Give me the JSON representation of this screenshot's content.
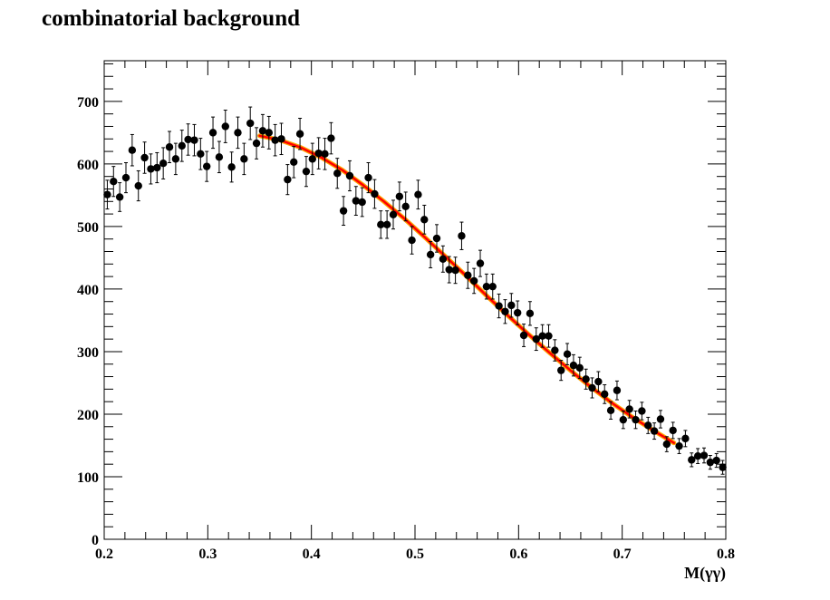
{
  "chart_data": {
    "type": "scatter",
    "title": "combinatorial background",
    "xlabel": "M(γγ)",
    "ylabel": "",
    "xlim": [
      0.2,
      0.8
    ],
    "ylim": [
      0,
      765
    ],
    "grid": false,
    "legend": "none",
    "x_ticks": [
      "0.2",
      "0.3",
      "0.4",
      "0.5",
      "0.6",
      "0.7",
      "0.8"
    ],
    "y_ticks": [
      "0",
      "100",
      "200",
      "300",
      "400",
      "500",
      "600",
      "700"
    ],
    "colors": {
      "points": "#000000",
      "fit_outer": "#ffa500",
      "fit_inner": "#ff0000"
    },
    "series": [
      {
        "kind": "points-with-errors",
        "x": [
          0.203,
          0.209,
          0.215,
          0.221,
          0.227,
          0.233,
          0.239,
          0.245,
          0.251,
          0.257,
          0.263,
          0.269,
          0.275,
          0.281,
          0.287,
          0.293,
          0.299,
          0.305,
          0.311,
          0.317,
          0.323,
          0.329,
          0.335,
          0.341,
          0.347,
          0.353,
          0.359,
          0.365,
          0.371,
          0.377,
          0.383,
          0.389,
          0.395,
          0.401,
          0.407,
          0.413,
          0.419,
          0.425,
          0.431,
          0.437,
          0.443,
          0.449,
          0.455,
          0.461,
          0.467,
          0.473,
          0.479,
          0.485,
          0.491,
          0.497,
          0.503,
          0.509,
          0.515,
          0.521,
          0.527,
          0.533,
          0.539,
          0.545,
          0.551,
          0.557,
          0.563,
          0.569,
          0.575,
          0.581,
          0.587,
          0.593,
          0.599,
          0.605,
          0.611,
          0.617,
          0.623,
          0.629,
          0.635,
          0.641,
          0.647,
          0.653,
          0.659,
          0.665,
          0.671,
          0.677,
          0.683,
          0.689,
          0.695,
          0.701,
          0.707,
          0.713,
          0.719,
          0.725,
          0.731,
          0.737,
          0.743,
          0.749,
          0.755,
          0.761,
          0.767,
          0.773,
          0.779,
          0.785,
          0.791,
          0.797
        ],
        "y": [
          551,
          572,
          547,
          578,
          622,
          565,
          610,
          592,
          594,
          601,
          627,
          608,
          629,
          639,
          638,
          616,
          596,
          650,
          611,
          660,
          595,
          650,
          608,
          665,
          633,
          653,
          650,
          638,
          640,
          575,
          603,
          648,
          588,
          608,
          617,
          616,
          641,
          585,
          525,
          581,
          541,
          539,
          578,
          552,
          503,
          503,
          519,
          548,
          532,
          478,
          551,
          511,
          455,
          481,
          448,
          431,
          430,
          485,
          422,
          413,
          441,
          404,
          404,
          373,
          364,
          374,
          362,
          326,
          361,
          320,
          325,
          325,
          302,
          270,
          296,
          278,
          274,
          256,
          242,
          252,
          232,
          206,
          238,
          191,
          208,
          191,
          205,
          182,
          173,
          192,
          152,
          174,
          149,
          161,
          127,
          133,
          134,
          123,
          126,
          115
        ],
        "yerr": [
          23,
          24,
          23,
          24,
          25,
          24,
          25,
          24,
          24,
          25,
          25,
          25,
          25,
          25,
          25,
          25,
          24,
          25,
          25,
          26,
          24,
          25,
          25,
          26,
          25,
          26,
          26,
          25,
          25,
          24,
          25,
          25,
          24,
          25,
          25,
          25,
          25,
          24,
          23,
          24,
          23,
          23,
          24,
          23,
          22,
          22,
          23,
          23,
          23,
          22,
          23,
          23,
          21,
          22,
          21,
          21,
          21,
          22,
          21,
          20,
          21,
          20,
          20,
          19,
          19,
          19,
          19,
          18,
          19,
          18,
          18,
          18,
          17,
          16,
          17,
          17,
          17,
          16,
          16,
          16,
          15,
          14,
          15,
          14,
          14,
          14,
          14,
          13,
          13,
          14,
          12,
          13,
          12,
          13,
          11,
          12,
          12,
          11,
          11,
          11
        ]
      },
      {
        "kind": "fit-curve",
        "x": [
          0.35,
          0.37,
          0.39,
          0.41,
          0.43,
          0.45,
          0.47,
          0.49,
          0.51,
          0.53,
          0.55,
          0.57,
          0.59,
          0.61,
          0.63,
          0.65,
          0.67,
          0.69,
          0.71,
          0.73,
          0.75
        ],
        "y": [
          645,
          638,
          626,
          610,
          590,
          566,
          540,
          512,
          482,
          451,
          420,
          388,
          357,
          327,
          298,
          270,
          243,
          218,
          195,
          174,
          154
        ]
      }
    ]
  }
}
